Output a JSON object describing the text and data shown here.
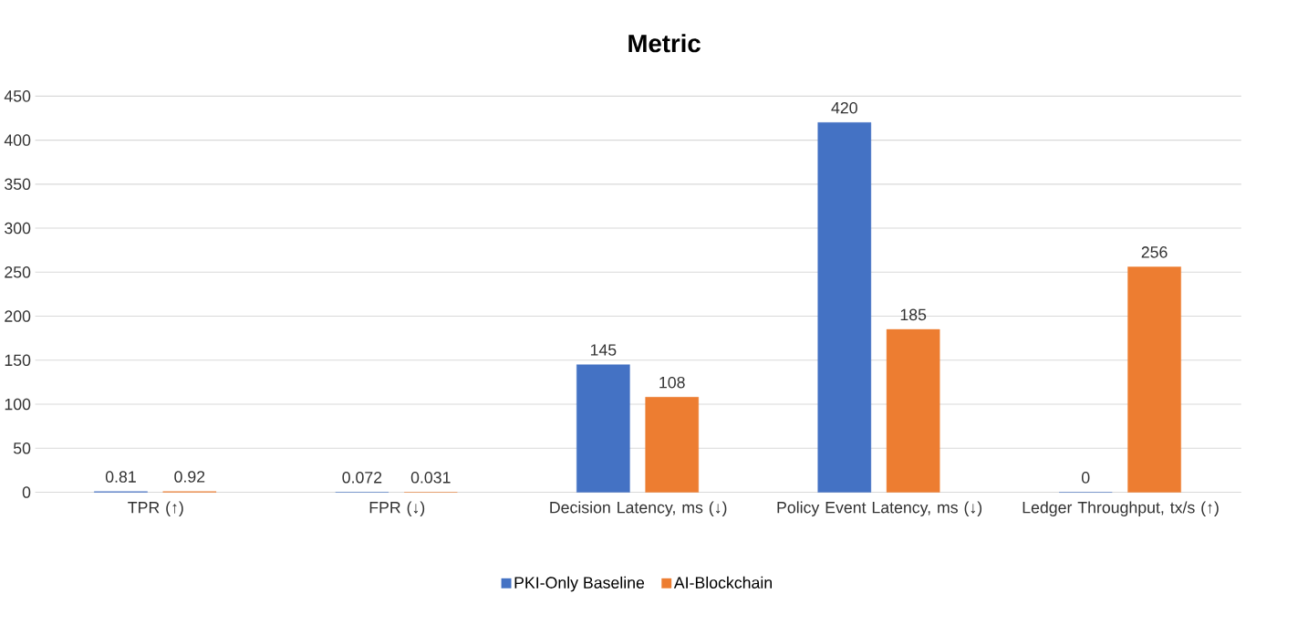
{
  "chart_data": {
    "type": "bar",
    "title": "Metric",
    "categories": [
      "TPR (↑)",
      "FPR (↓)",
      "Decision Latency, ms (↓)",
      "Policy Event Latency, ms (↓)",
      "Ledger Throughput, tx/s (↑)"
    ],
    "series": [
      {
        "name": "PKI-Only Baseline",
        "color": "#4472c4",
        "values": [
          0.81,
          0.072,
          145,
          420,
          0
        ]
      },
      {
        "name": "AI-Blockchain",
        "color": "#ed7d31",
        "values": [
          0.92,
          0.031,
          108,
          185,
          256
        ]
      }
    ],
    "ylim": [
      0,
      450
    ],
    "yticks": [
      0,
      50,
      100,
      150,
      200,
      250,
      300,
      350,
      400,
      450
    ],
    "grid": "y",
    "legend": "bottom",
    "data_labels": true
  }
}
